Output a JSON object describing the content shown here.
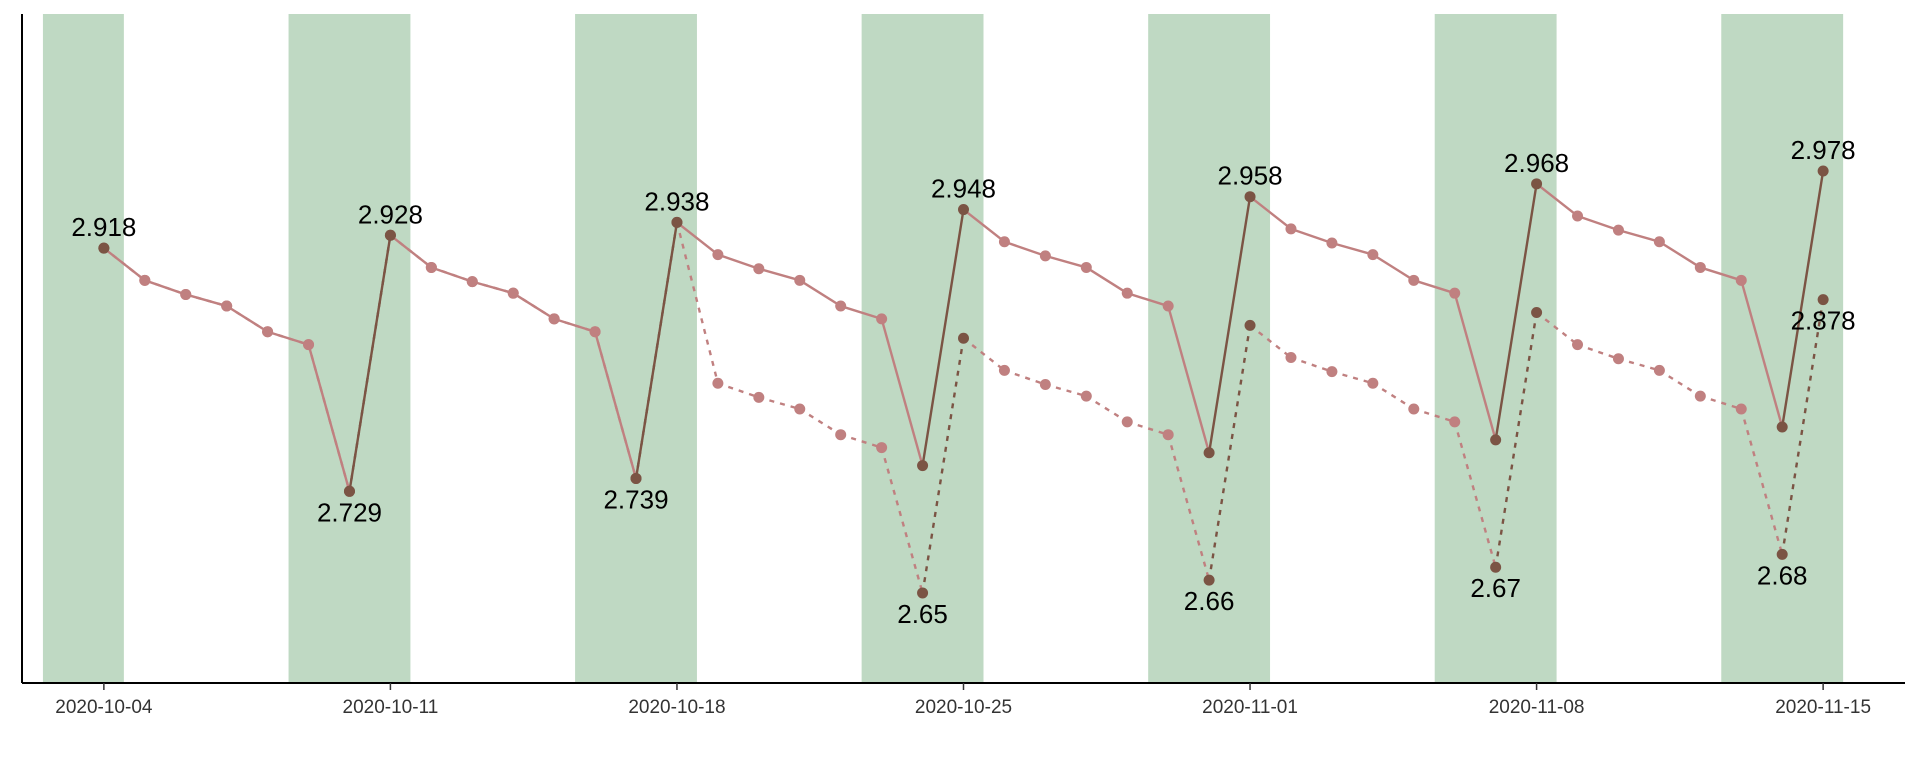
{
  "chart_data": {
    "type": "line",
    "title": "",
    "xlabel": "",
    "ylabel": "",
    "x_start": "2020-10-04",
    "x_range": [
      "2020-10-02",
      "2020-11-17"
    ],
    "ylim": [
      2.58,
      3.1
    ],
    "x_ticks": [
      "2020-10-04",
      "2020-10-11",
      "2020-10-18",
      "2020-10-25",
      "2020-11-01",
      "2020-11-08",
      "2020-11-15"
    ],
    "grid": false,
    "legend": "none",
    "colors": {
      "band": "#bfd9c3",
      "base_line": "#c08080",
      "base_point": "#c08080",
      "key_line": "#7b5444",
      "key_point": "#7b5444",
      "axis": "#000000"
    },
    "bands": [
      {
        "start": "2020-10-03",
        "end": "2020-10-04"
      },
      {
        "start": "2020-10-09",
        "end": "2020-10-11"
      },
      {
        "start": "2020-10-16",
        "end": "2020-10-18"
      },
      {
        "start": "2020-10-23",
        "end": "2020-10-25"
      },
      {
        "start": "2020-10-30",
        "end": "2020-11-01"
      },
      {
        "start": "2020-11-06",
        "end": "2020-11-08"
      },
      {
        "start": "2020-11-13",
        "end": "2020-11-15"
      }
    ],
    "series": [
      {
        "style": "solid",
        "x": [
          "2020-10-04",
          "2020-10-05",
          "2020-10-06",
          "2020-10-07",
          "2020-10-08",
          "2020-10-09",
          "2020-10-10",
          "2020-10-11",
          "2020-10-12",
          "2020-10-13",
          "2020-10-14",
          "2020-10-15",
          "2020-10-16",
          "2020-10-17",
          "2020-10-18",
          "2020-10-19",
          "2020-10-20",
          "2020-10-21",
          "2020-10-22",
          "2020-10-23",
          "2020-10-24",
          "2020-10-25",
          "2020-10-26",
          "2020-10-27",
          "2020-10-28",
          "2020-10-29",
          "2020-10-30",
          "2020-10-31",
          "2020-11-01",
          "2020-11-02",
          "2020-11-03",
          "2020-11-04",
          "2020-11-05",
          "2020-11-06",
          "2020-11-07",
          "2020-11-08",
          "2020-11-09",
          "2020-11-10",
          "2020-11-11",
          "2020-11-12",
          "2020-11-13",
          "2020-11-14",
          "2020-11-15"
        ],
        "values": [
          2.918,
          2.893,
          2.882,
          2.873,
          2.853,
          2.843,
          2.729,
          2.928,
          2.903,
          2.892,
          2.883,
          2.863,
          2.853,
          2.739,
          2.938,
          2.913,
          2.902,
          2.893,
          2.873,
          2.863,
          2.749,
          2.948,
          2.923,
          2.912,
          2.903,
          2.883,
          2.873,
          2.759,
          2.958,
          2.933,
          2.922,
          2.913,
          2.893,
          2.883,
          2.769,
          2.968,
          2.943,
          2.932,
          2.923,
          2.903,
          2.893,
          2.779,
          2.978
        ]
      },
      {
        "style": "dotted",
        "x": [
          "2020-10-04",
          "2020-10-05",
          "2020-10-06",
          "2020-10-07",
          "2020-10-08",
          "2020-10-09",
          "2020-10-10",
          "2020-10-11",
          "2020-10-12",
          "2020-10-13",
          "2020-10-14",
          "2020-10-15",
          "2020-10-16",
          "2020-10-17",
          "2020-10-18",
          "2020-10-19",
          "2020-10-20",
          "2020-10-21",
          "2020-10-22",
          "2020-10-23",
          "2020-10-24",
          "2020-10-25",
          "2020-10-26",
          "2020-10-27",
          "2020-10-28",
          "2020-10-29",
          "2020-10-30",
          "2020-10-31",
          "2020-11-01",
          "2020-11-02",
          "2020-11-03",
          "2020-11-04",
          "2020-11-05",
          "2020-11-06",
          "2020-11-07",
          "2020-11-08",
          "2020-11-09",
          "2020-11-10",
          "2020-11-11",
          "2020-11-12",
          "2020-11-13",
          "2020-11-14",
          "2020-11-15"
        ],
        "values": [
          2.918,
          2.893,
          2.882,
          2.873,
          2.853,
          2.843,
          2.729,
          2.928,
          2.903,
          2.892,
          2.883,
          2.863,
          2.853,
          2.739,
          2.938,
          2.813,
          2.802,
          2.793,
          2.773,
          2.763,
          2.65,
          2.848,
          2.823,
          2.812,
          2.803,
          2.783,
          2.773,
          2.66,
          2.858,
          2.833,
          2.822,
          2.813,
          2.793,
          2.783,
          2.67,
          2.868,
          2.843,
          2.832,
          2.823,
          2.803,
          2.793,
          2.68,
          2.878
        ]
      }
    ],
    "data_labels": [
      {
        "x": "2020-10-04",
        "y": 2.918,
        "text": "2.918",
        "pos": "above"
      },
      {
        "x": "2020-10-10",
        "y": 2.729,
        "text": "2.729",
        "pos": "below"
      },
      {
        "x": "2020-10-11",
        "y": 2.928,
        "text": "2.928",
        "pos": "above"
      },
      {
        "x": "2020-10-17",
        "y": 2.739,
        "text": "2.739",
        "pos": "below"
      },
      {
        "x": "2020-10-18",
        "y": 2.938,
        "text": "2.938",
        "pos": "above"
      },
      {
        "x": "2020-10-24",
        "y": 2.65,
        "text": "2.65",
        "pos": "below"
      },
      {
        "x": "2020-10-25",
        "y": 2.948,
        "text": "2.948",
        "pos": "above"
      },
      {
        "x": "2020-10-31",
        "y": 2.66,
        "text": "2.66",
        "pos": "below"
      },
      {
        "x": "2020-11-01",
        "y": 2.958,
        "text": "2.958",
        "pos": "above"
      },
      {
        "x": "2020-11-07",
        "y": 2.67,
        "text": "2.67",
        "pos": "below"
      },
      {
        "x": "2020-11-08",
        "y": 2.968,
        "text": "2.968",
        "pos": "above"
      },
      {
        "x": "2020-11-14",
        "y": 2.68,
        "text": "2.68",
        "pos": "below"
      },
      {
        "x": "2020-11-15",
        "y": 2.978,
        "text": "2.978",
        "pos": "above"
      },
      {
        "x": "2020-11-15",
        "y": 2.878,
        "text": "2.878",
        "pos": "below"
      }
    ]
  }
}
